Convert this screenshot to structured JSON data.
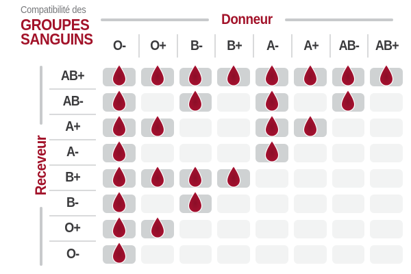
{
  "title": {
    "line1": "Compatibilité des",
    "line2": "GROUPES",
    "line3": "SANGUINS"
  },
  "chart_data": {
    "type": "heatmap",
    "title": "Compatibilité des GROUPES SANGUINS",
    "columns_label": "Donneur",
    "rows_label": "Receveur",
    "columns": [
      "O-",
      "O+",
      "B-",
      "B+",
      "A-",
      "A+",
      "AB-",
      "AB+"
    ],
    "rows": [
      "AB+",
      "AB-",
      "A+",
      "A-",
      "B+",
      "B-",
      "O+",
      "O-"
    ],
    "matrix": [
      [
        1,
        1,
        1,
        1,
        1,
        1,
        1,
        1
      ],
      [
        1,
        0,
        1,
        0,
        1,
        0,
        1,
        0
      ],
      [
        1,
        1,
        0,
        0,
        1,
        1,
        0,
        0
      ],
      [
        1,
        0,
        0,
        0,
        1,
        0,
        0,
        0
      ],
      [
        1,
        1,
        1,
        1,
        0,
        0,
        0,
        0
      ],
      [
        1,
        0,
        1,
        0,
        0,
        0,
        0,
        0
      ],
      [
        1,
        1,
        0,
        0,
        0,
        0,
        0,
        0
      ],
      [
        1,
        0,
        0,
        0,
        0,
        0,
        0,
        0
      ]
    ],
    "cell_icon": "blood-drop-icon",
    "legend_position": "none",
    "grid": "off"
  },
  "colors": {
    "accent": "#a21229",
    "text_dark": "#3a3a3c",
    "text_gray": "#77787b",
    "cell_filled": "#cfd2d3",
    "cell_empty": "#f2f3f3",
    "divider": "#d9dadb",
    "axis_line": "#c8cacc",
    "drop_outer": "#b51337",
    "drop_mid": "#9e102d",
    "drop_inner": "#8c0e28",
    "drop_stroke": "#ffffff"
  }
}
